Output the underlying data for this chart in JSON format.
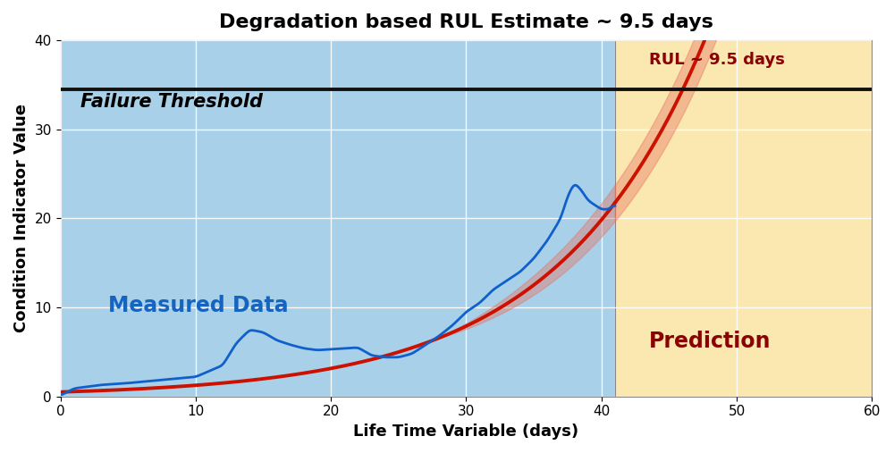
{
  "title": "Degradation based RUL Estimate ~ 9.5 days",
  "xlabel": "Life Time Variable (days)",
  "ylabel": "Condition Indicator Value",
  "xlim": [
    0,
    60
  ],
  "ylim": [
    0,
    40
  ],
  "failure_threshold": 34.5,
  "failure_threshold_label": "Failure Threshold",
  "current_time": 41,
  "rul_label": "RUL ~ 9.5 days",
  "measured_label": "Measured Data",
  "prediction_label": "Prediction",
  "bg_measured_color": "#A8D0E8",
  "bg_prediction_color": "#FAE8B0",
  "model_color": "#CC1100",
  "measured_color": "#1060CC",
  "ci_color": "#E87060",
  "threshold_color": "#111111",
  "title_fontsize": 16,
  "axis_label_fontsize": 13
}
